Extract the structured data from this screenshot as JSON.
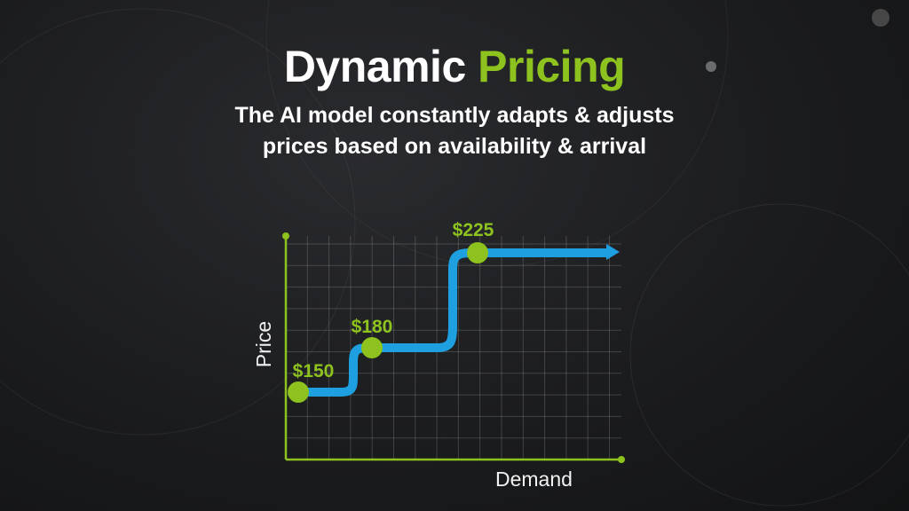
{
  "header": {
    "title_part1": "Dynamic",
    "title_part2": "Pricing",
    "subtitle_line1": "The AI model constantly adapts & adjusts",
    "subtitle_line2": "prices based on availability & arrival"
  },
  "colors": {
    "accent": "#8dc21f",
    "line": "#1e9fe0",
    "background": "#1b1c1e"
  },
  "chart_data": {
    "type": "line",
    "style": "step",
    "xlabel": "Demand",
    "ylabel": "Price",
    "grid": true,
    "values": [
      150,
      180,
      225
    ],
    "labels": [
      "$150",
      "$180",
      "$225"
    ],
    "end_arrow": true
  }
}
